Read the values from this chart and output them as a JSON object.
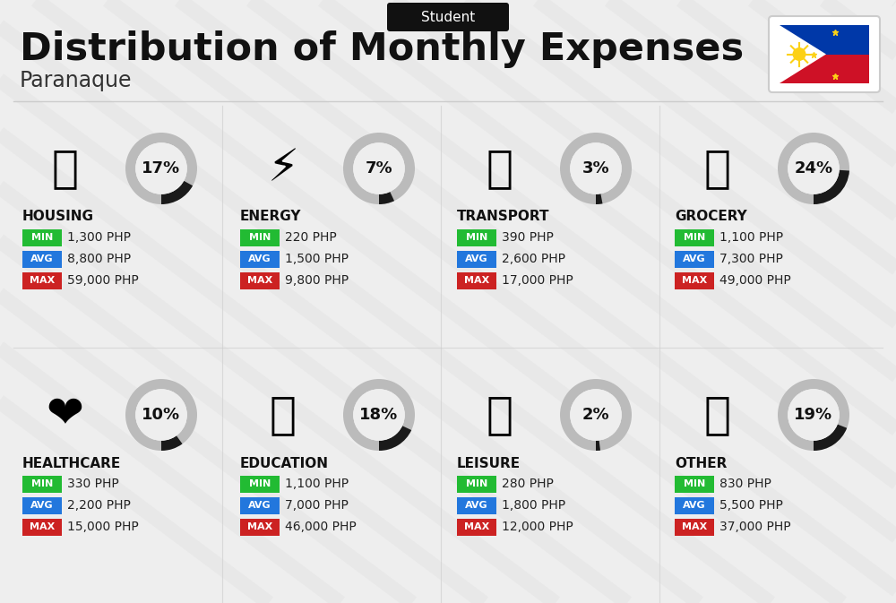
{
  "title": "Distribution of Monthly Expenses",
  "subtitle": "Student",
  "location": "Paranaque",
  "bg_color": "#eeeeee",
  "categories": [
    {
      "name": "HOUSING",
      "percent": 17,
      "icon": "🏗",
      "min": "1,300 PHP",
      "avg": "8,800 PHP",
      "max": "59,000 PHP",
      "row": 0,
      "col": 0
    },
    {
      "name": "ENERGY",
      "percent": 7,
      "icon": "⚡",
      "min": "220 PHP",
      "avg": "1,500 PHP",
      "max": "9,800 PHP",
      "row": 0,
      "col": 1
    },
    {
      "name": "TRANSPORT",
      "percent": 3,
      "icon": "🚌",
      "min": "390 PHP",
      "avg": "2,600 PHP",
      "max": "17,000 PHP",
      "row": 0,
      "col": 2
    },
    {
      "name": "GROCERY",
      "percent": 24,
      "icon": "🛒",
      "min": "1,100 PHP",
      "avg": "7,300 PHP",
      "max": "49,000 PHP",
      "row": 0,
      "col": 3
    },
    {
      "name": "HEALTHCARE",
      "percent": 10,
      "icon": "❤️",
      "min": "330 PHP",
      "avg": "2,200 PHP",
      "max": "15,000 PHP",
      "row": 1,
      "col": 0
    },
    {
      "name": "EDUCATION",
      "percent": 18,
      "icon": "🎓",
      "min": "1,100 PHP",
      "avg": "7,000 PHP",
      "max": "46,000 PHP",
      "row": 1,
      "col": 1
    },
    {
      "name": "LEISURE",
      "percent": 2,
      "icon": "🛍️",
      "min": "280 PHP",
      "avg": "1,800 PHP",
      "max": "12,000 PHP",
      "row": 1,
      "col": 2
    },
    {
      "name": "OTHER",
      "percent": 19,
      "icon": "💰",
      "min": "830 PHP",
      "avg": "5,500 PHP",
      "max": "37,000 PHP",
      "row": 1,
      "col": 3
    }
  ],
  "min_color": "#22bb33",
  "avg_color": "#2277dd",
  "max_color": "#cc2222",
  "stripe_color": "#dddddd",
  "circle_dark": "#1a1a1a",
  "circle_light": "#bbbbbb"
}
